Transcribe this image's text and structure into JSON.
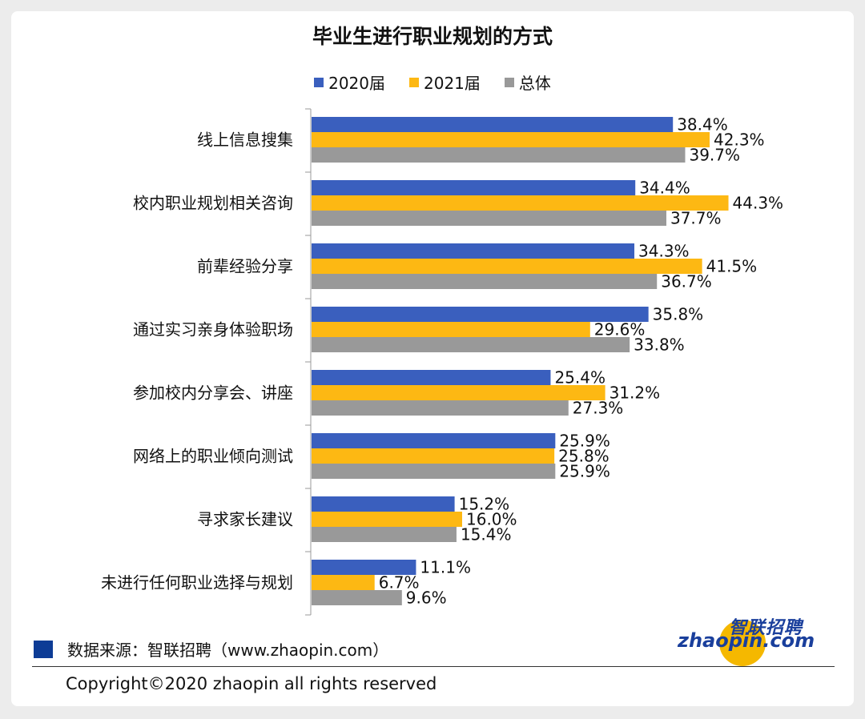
{
  "chart_data": {
    "type": "bar",
    "orientation": "horizontal",
    "title": "毕业生进行职业规划的方式",
    "categories": [
      "线上信息搜集",
      "校内职业规划相关咨询",
      "前辈经验分享",
      "通过实习亲身体验职场",
      "参加校内分享会、讲座",
      "网络上的职业倾向测试",
      "寻求家长建议",
      "未进行任何职业选择与规划"
    ],
    "series": [
      {
        "name": "2020届",
        "color": "#3a5fbe",
        "values": [
          38.4,
          34.4,
          34.3,
          35.8,
          25.4,
          25.9,
          15.2,
          11.1
        ],
        "labels": [
          "38.4%",
          "34.4%",
          "34.3%",
          "35.8%",
          "25.4%",
          "25.9%",
          "15.2%",
          "11.1%"
        ]
      },
      {
        "name": "2021届",
        "color": "#fdb813",
        "values": [
          42.3,
          44.3,
          41.5,
          29.6,
          31.2,
          25.8,
          16.0,
          6.7
        ],
        "labels": [
          "42.3%",
          "44.3%",
          "41.5%",
          "29.6%",
          "31.2%",
          "25.8%",
          "16.0%",
          "6.7%"
        ]
      },
      {
        "name": "总体",
        "color": "#999999",
        "values": [
          39.7,
          37.7,
          36.7,
          33.8,
          27.3,
          25.9,
          15.4,
          9.6
        ],
        "labels": [
          "39.7%",
          "37.7%",
          "36.7%",
          "33.8%",
          "27.3%",
          "25.9%",
          "15.4%",
          "9.6%"
        ]
      }
    ],
    "xlim": [
      0,
      50
    ],
    "legend_position": "top-center",
    "grid": false
  },
  "footer": {
    "source": "数据来源：智联招聘（www.zhaopin.com）",
    "copyright": "Copyright©2020 zhaopin all rights reserved",
    "source_color": "#0d3c96"
  },
  "logo": {
    "chinese": "智联招聘",
    "english": "zhaopin.com"
  }
}
